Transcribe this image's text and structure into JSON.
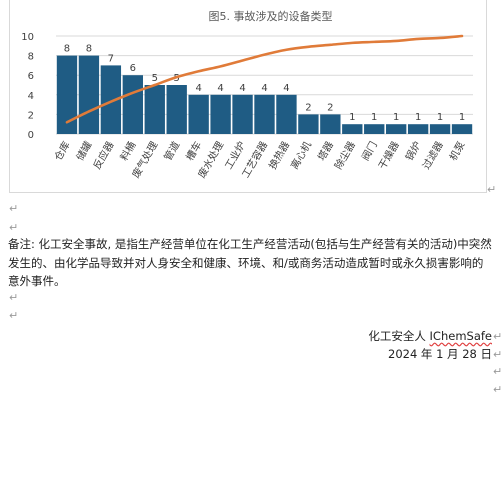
{
  "chart_data": {
    "type": "bar",
    "title": "图5. 事故涉及的设备类型",
    "categories": [
      "仓库",
      "储罐",
      "反应器",
      "料桶",
      "废气处理",
      "管道",
      "槽车",
      "废水处理",
      "工业炉",
      "工艺容器",
      "换热器",
      "离心机",
      "塔器",
      "除尘器",
      "阀门",
      "干燥器",
      "锅炉",
      "过滤器",
      "机泵"
    ],
    "values": [
      8,
      8,
      7,
      6,
      5,
      5,
      4,
      4,
      4,
      4,
      4,
      2,
      2,
      1,
      1,
      1,
      1,
      1,
      1
    ],
    "cumulative_line": [
      1.2,
      2.3,
      3.3,
      4.2,
      5.0,
      5.8,
      6.4,
      6.9,
      7.5,
      8.1,
      8.6,
      8.9,
      9.1,
      9.3,
      9.4,
      9.5,
      9.7,
      9.8,
      10.0
    ],
    "yticks": [
      0,
      2,
      4,
      6,
      8,
      10
    ],
    "ylim": [
      0,
      10
    ],
    "bar_color": "#1f5c84",
    "line_color": "#e07b39",
    "grid": true,
    "legend": "none"
  },
  "note": "备注: 化工安全事故, 是指生产经营单位在化工生产经营活动(包括与生产经营有关的活动)中突然发生的、由化学品导致并对人身安全和健康、环境、和/或商务活动造成暂时或永久损害影响的意外事件。",
  "signature": {
    "org_prefix": "化工安全人 ",
    "org_brand": "IChemSafe",
    "date": "2024 年 1 月 28 日"
  },
  "marks": {
    "paragraph": "↵"
  }
}
